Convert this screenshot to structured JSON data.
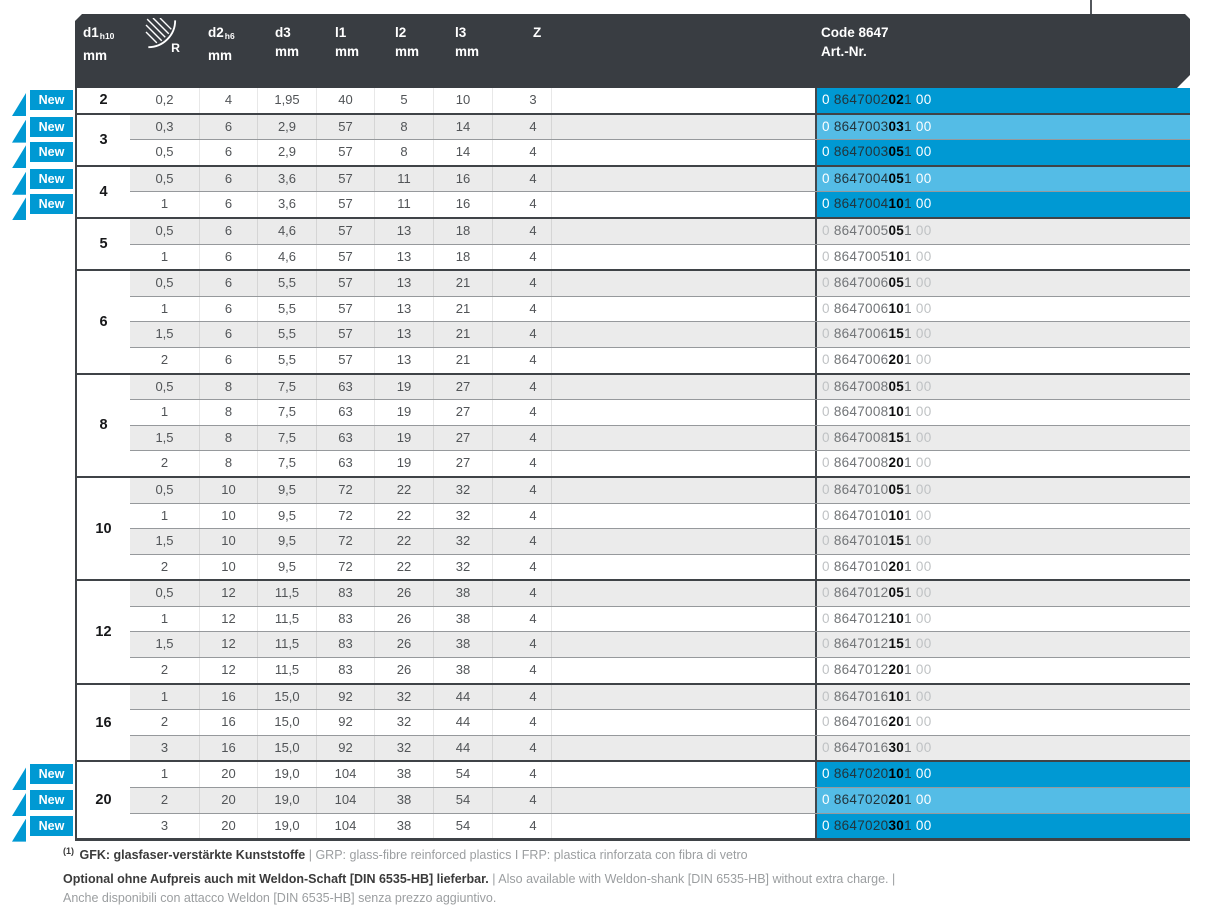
{
  "colors": {
    "accent_blue": "#0099d3",
    "light_blue": "#54bce6",
    "header_bg": "#393d42",
    "stripe_gray": "#ebebeb",
    "rule_dark": "#3f4347"
  },
  "badge": {
    "label": "New"
  },
  "table": {
    "header": {
      "columns": [
        {
          "label": "d1",
          "sub": "h10",
          "unit": "mm"
        },
        {
          "icon": "radius-icon",
          "letter": "R"
        },
        {
          "label": "d2",
          "sub": "h6",
          "unit": "mm"
        },
        {
          "label": "d3",
          "unit": "mm"
        },
        {
          "label": "l1",
          "unit": "mm"
        },
        {
          "label": "l2",
          "unit": "mm"
        },
        {
          "label": "l3",
          "unit": "mm"
        },
        {
          "label": "Z"
        },
        {
          "label": "Code 8647",
          "sub_label": "Art.-Nr."
        }
      ]
    },
    "groups": [
      {
        "d1": "2",
        "rows": [
          {
            "r": "0,2",
            "d2": "4",
            "d3": "1,95",
            "l1": "40",
            "l2": "5",
            "l3": "10",
            "z": "3",
            "new": true,
            "code": [
              "0",
              "8647002",
              "02",
              "1",
              "00"
            ]
          }
        ]
      },
      {
        "d1": "3",
        "rows": [
          {
            "r": "0,3",
            "d2": "6",
            "d3": "2,9",
            "l1": "57",
            "l2": "8",
            "l3": "14",
            "z": "4",
            "new": true,
            "code": [
              "0",
              "8647003",
              "03",
              "1",
              "00"
            ]
          },
          {
            "r": "0,5",
            "d2": "6",
            "d3": "2,9",
            "l1": "57",
            "l2": "8",
            "l3": "14",
            "z": "4",
            "new": true,
            "code": [
              "0",
              "8647003",
              "05",
              "1",
              "00"
            ]
          }
        ]
      },
      {
        "d1": "4",
        "rows": [
          {
            "r": "0,5",
            "d2": "6",
            "d3": "3,6",
            "l1": "57",
            "l2": "11",
            "l3": "16",
            "z": "4",
            "new": true,
            "code": [
              "0",
              "8647004",
              "05",
              "1",
              "00"
            ]
          },
          {
            "r": "1",
            "d2": "6",
            "d3": "3,6",
            "l1": "57",
            "l2": "11",
            "l3": "16",
            "z": "4",
            "new": true,
            "code": [
              "0",
              "8647004",
              "10",
              "1",
              "00"
            ]
          }
        ]
      },
      {
        "d1": "5",
        "rows": [
          {
            "r": "0,5",
            "d2": "6",
            "d3": "4,6",
            "l1": "57",
            "l2": "13",
            "l3": "18",
            "z": "4",
            "code": [
              "0",
              "8647005",
              "05",
              "1",
              "00"
            ]
          },
          {
            "r": "1",
            "d2": "6",
            "d3": "4,6",
            "l1": "57",
            "l2": "13",
            "l3": "18",
            "z": "4",
            "code": [
              "0",
              "8647005",
              "10",
              "1",
              "00"
            ]
          }
        ]
      },
      {
        "d1": "6",
        "rows": [
          {
            "r": "0,5",
            "d2": "6",
            "d3": "5,5",
            "l1": "57",
            "l2": "13",
            "l3": "21",
            "z": "4",
            "code": [
              "0",
              "8647006",
              "05",
              "1",
              "00"
            ]
          },
          {
            "r": "1",
            "d2": "6",
            "d3": "5,5",
            "l1": "57",
            "l2": "13",
            "l3": "21",
            "z": "4",
            "code": [
              "0",
              "8647006",
              "10",
              "1",
              "00"
            ]
          },
          {
            "r": "1,5",
            "d2": "6",
            "d3": "5,5",
            "l1": "57",
            "l2": "13",
            "l3": "21",
            "z": "4",
            "code": [
              "0",
              "8647006",
              "15",
              "1",
              "00"
            ]
          },
          {
            "r": "2",
            "d2": "6",
            "d3": "5,5",
            "l1": "57",
            "l2": "13",
            "l3": "21",
            "z": "4",
            "code": [
              "0",
              "8647006",
              "20",
              "1",
              "00"
            ]
          }
        ]
      },
      {
        "d1": "8",
        "rows": [
          {
            "r": "0,5",
            "d2": "8",
            "d3": "7,5",
            "l1": "63",
            "l2": "19",
            "l3": "27",
            "z": "4",
            "code": [
              "0",
              "8647008",
              "05",
              "1",
              "00"
            ]
          },
          {
            "r": "1",
            "d2": "8",
            "d3": "7,5",
            "l1": "63",
            "l2": "19",
            "l3": "27",
            "z": "4",
            "code": [
              "0",
              "8647008",
              "10",
              "1",
              "00"
            ]
          },
          {
            "r": "1,5",
            "d2": "8",
            "d3": "7,5",
            "l1": "63",
            "l2": "19",
            "l3": "27",
            "z": "4",
            "code": [
              "0",
              "8647008",
              "15",
              "1",
              "00"
            ]
          },
          {
            "r": "2",
            "d2": "8",
            "d3": "7,5",
            "l1": "63",
            "l2": "19",
            "l3": "27",
            "z": "4",
            "code": [
              "0",
              "8647008",
              "20",
              "1",
              "00"
            ]
          }
        ]
      },
      {
        "d1": "10",
        "rows": [
          {
            "r": "0,5",
            "d2": "10",
            "d3": "9,5",
            "l1": "72",
            "l2": "22",
            "l3": "32",
            "z": "4",
            "code": [
              "0",
              "8647010",
              "05",
              "1",
              "00"
            ]
          },
          {
            "r": "1",
            "d2": "10",
            "d3": "9,5",
            "l1": "72",
            "l2": "22",
            "l3": "32",
            "z": "4",
            "code": [
              "0",
              "8647010",
              "10",
              "1",
              "00"
            ]
          },
          {
            "r": "1,5",
            "d2": "10",
            "d3": "9,5",
            "l1": "72",
            "l2": "22",
            "l3": "32",
            "z": "4",
            "code": [
              "0",
              "8647010",
              "15",
              "1",
              "00"
            ]
          },
          {
            "r": "2",
            "d2": "10",
            "d3": "9,5",
            "l1": "72",
            "l2": "22",
            "l3": "32",
            "z": "4",
            "code": [
              "0",
              "8647010",
              "20",
              "1",
              "00"
            ]
          }
        ]
      },
      {
        "d1": "12",
        "rows": [
          {
            "r": "0,5",
            "d2": "12",
            "d3": "11,5",
            "l1": "83",
            "l2": "26",
            "l3": "38",
            "z": "4",
            "code": [
              "0",
              "8647012",
              "05",
              "1",
              "00"
            ]
          },
          {
            "r": "1",
            "d2": "12",
            "d3": "11,5",
            "l1": "83",
            "l2": "26",
            "l3": "38",
            "z": "4",
            "code": [
              "0",
              "8647012",
              "10",
              "1",
              "00"
            ]
          },
          {
            "r": "1,5",
            "d2": "12",
            "d3": "11,5",
            "l1": "83",
            "l2": "26",
            "l3": "38",
            "z": "4",
            "code": [
              "0",
              "8647012",
              "15",
              "1",
              "00"
            ]
          },
          {
            "r": "2",
            "d2": "12",
            "d3": "11,5",
            "l1": "83",
            "l2": "26",
            "l3": "38",
            "z": "4",
            "code": [
              "0",
              "8647012",
              "20",
              "1",
              "00"
            ]
          }
        ]
      },
      {
        "d1": "16",
        "rows": [
          {
            "r": "1",
            "d2": "16",
            "d3": "15,0",
            "l1": "92",
            "l2": "32",
            "l3": "44",
            "z": "4",
            "code": [
              "0",
              "8647016",
              "10",
              "1",
              "00"
            ]
          },
          {
            "r": "2",
            "d2": "16",
            "d3": "15,0",
            "l1": "92",
            "l2": "32",
            "l3": "44",
            "z": "4",
            "code": [
              "0",
              "8647016",
              "20",
              "1",
              "00"
            ]
          },
          {
            "r": "3",
            "d2": "16",
            "d3": "15,0",
            "l1": "92",
            "l2": "32",
            "l3": "44",
            "z": "4",
            "code": [
              "0",
              "8647016",
              "30",
              "1",
              "00"
            ]
          }
        ]
      },
      {
        "d1": "20",
        "rows": [
          {
            "r": "1",
            "d2": "20",
            "d3": "19,0",
            "l1": "104",
            "l2": "38",
            "l3": "54",
            "z": "4",
            "new": true,
            "code": [
              "0",
              "8647020",
              "10",
              "1",
              "00"
            ]
          },
          {
            "r": "2",
            "d2": "20",
            "d3": "19,0",
            "l1": "104",
            "l2": "38",
            "l3": "54",
            "z": "4",
            "new": true,
            "code": [
              "0",
              "8647020",
              "20",
              "1",
              "00"
            ]
          },
          {
            "r": "3",
            "d2": "20",
            "d3": "19,0",
            "l1": "104",
            "l2": "38",
            "l3": "54",
            "z": "4",
            "new": true,
            "code": [
              "0",
              "8647020",
              "30",
              "1",
              "00"
            ]
          }
        ]
      }
    ]
  },
  "footnotes": {
    "note1_sup": "(1)",
    "note1_strong": "GFK: glasfaser-verstärkte Kunststoffe",
    "note1_light": "| GRP: glass-fibre reinforced plastics I FRP: plastica rinforzata con fibra di vetro",
    "note2_strong": "Optional ohne Aufpreis auch mit Weldon-Schaft [DIN 6535-HB] lieferbar.",
    "note2_light": "| Also available with Weldon-shank [DIN 6535-HB] without extra charge. |",
    "note3_light": "Anche disponibili con attacco Weldon [DIN 6535-HB] senza prezzo aggiuntivo."
  }
}
